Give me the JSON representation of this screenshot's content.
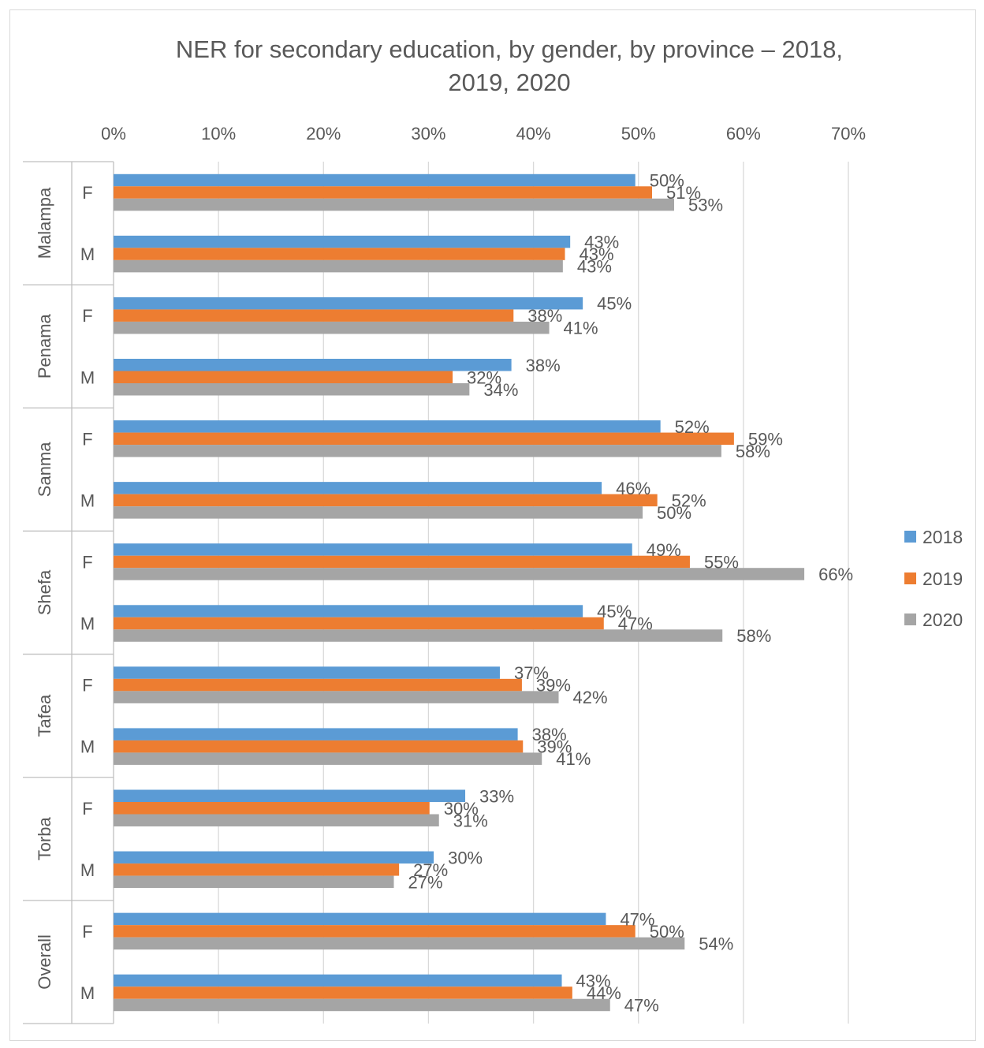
{
  "chart_data": {
    "type": "bar",
    "orientation": "horizontal",
    "title_lines": [
      "NER for secondary education, by gender, by province – 2018,",
      "2019, 2020"
    ],
    "xlabel": "",
    "ylabel": "",
    "xlim": [
      0,
      0.7
    ],
    "x_ticks": [
      "0%",
      "10%",
      "20%",
      "30%",
      "40%",
      "50%",
      "60%",
      "70%"
    ],
    "x_tick_values": [
      0,
      0.1,
      0.2,
      0.3,
      0.4,
      0.5,
      0.6,
      0.7
    ],
    "grid": true,
    "legend_position": "right",
    "groups": [
      {
        "name": "Malampa",
        "subcategories": [
          "F",
          "M"
        ]
      },
      {
        "name": "Penama",
        "subcategories": [
          "F",
          "M"
        ]
      },
      {
        "name": "Sanma",
        "subcategories": [
          "F",
          "M"
        ]
      },
      {
        "name": "Shefa",
        "subcategories": [
          "F",
          "M"
        ]
      },
      {
        "name": "Tafea",
        "subcategories": [
          "F",
          "M"
        ]
      },
      {
        "name": "Torba",
        "subcategories": [
          "F",
          "M"
        ]
      },
      {
        "name": "Overall",
        "subcategories": [
          "F",
          "M"
        ]
      }
    ],
    "series": [
      {
        "name": "2018",
        "color": "#5b9bd5",
        "values": [
          0.497,
          0.435,
          0.447,
          0.379,
          0.521,
          0.465,
          0.494,
          0.447,
          0.368,
          0.385,
          0.335,
          0.305,
          0.469,
          0.427
        ],
        "labels": [
          "50%",
          "43%",
          "45%",
          "38%",
          "52%",
          "46%",
          "49%",
          "45%",
          "37%",
          "38%",
          "33%",
          "30%",
          "47%",
          "43%"
        ]
      },
      {
        "name": "2019",
        "color": "#ed7d31",
        "values": [
          0.513,
          0.43,
          0.381,
          0.323,
          0.591,
          0.518,
          0.549,
          0.467,
          0.389,
          0.39,
          0.301,
          0.272,
          0.497,
          0.437
        ],
        "labels": [
          "51%",
          "43%",
          "38%",
          "32%",
          "59%",
          "52%",
          "55%",
          "47%",
          "39%",
          "39%",
          "30%",
          "27%",
          "50%",
          "44%"
        ]
      },
      {
        "name": "2020",
        "color": "#a5a5a5",
        "values": [
          0.534,
          0.428,
          0.415,
          0.339,
          0.579,
          0.504,
          0.658,
          0.58,
          0.424,
          0.408,
          0.31,
          0.267,
          0.544,
          0.473
        ],
        "labels": [
          "53%",
          "43%",
          "41%",
          "34%",
          "58%",
          "50%",
          "66%",
          "58%",
          "42%",
          "41%",
          "31%",
          "27%",
          "54%",
          "47%"
        ]
      }
    ]
  }
}
